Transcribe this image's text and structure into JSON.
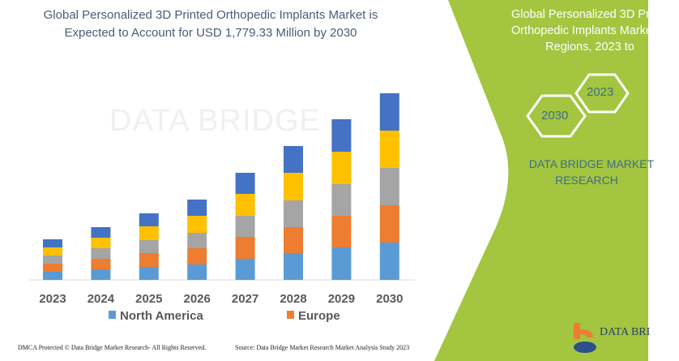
{
  "title": {
    "line1": "Global Personalized 3D Printed Orthopedic Implants Market is",
    "line2": "Expected to Account for USD 1,779.33 Million by 2030"
  },
  "right_panel": {
    "title_line1": "Global Personalized 3D Pri",
    "title_line2": "Orthopedic Implants Marke",
    "title_line3": "Regions, 2023 to",
    "hex1": "2023",
    "hex2": "2030",
    "brand_line1": "DATA BRIDGE MARKET",
    "brand_line2": "RESEARCH",
    "logo_text": "DATA BRI",
    "color": "#a3c540"
  },
  "watermark": "DATA BRIDGE",
  "footer": {
    "left": "DMCA Protected © Data Bridge Market Research-  All Rights Reserved.",
    "right": "Source: Data Bridge Market Research  Market Analysis Study 2023"
  },
  "chart_data": {
    "type": "bar",
    "stacked": true,
    "grid": false,
    "legend": "bottom",
    "categories": [
      "2023",
      "2024",
      "2025",
      "2026",
      "2027",
      "2028",
      "2029",
      "2030"
    ],
    "series": [
      {
        "name": "North America",
        "color": "#5b9bd5",
        "values": [
          10,
          13,
          16,
          19,
          26,
          33,
          40,
          46
        ]
      },
      {
        "name": "Europe",
        "color": "#ed7d31",
        "values": [
          10,
          13,
          17,
          20,
          27,
          32,
          39,
          46
        ]
      },
      {
        "color": "#a5a5a5",
        "values": [
          10,
          13,
          16,
          19,
          26,
          33,
          39,
          46
        ]
      },
      {
        "color": "#ffc000",
        "values": [
          10,
          13,
          17,
          21,
          27,
          34,
          40,
          46
        ]
      },
      {
        "color": "#4472c4",
        "values": [
          10,
          13,
          16,
          20,
          26,
          33,
          40,
          46
        ]
      }
    ]
  }
}
